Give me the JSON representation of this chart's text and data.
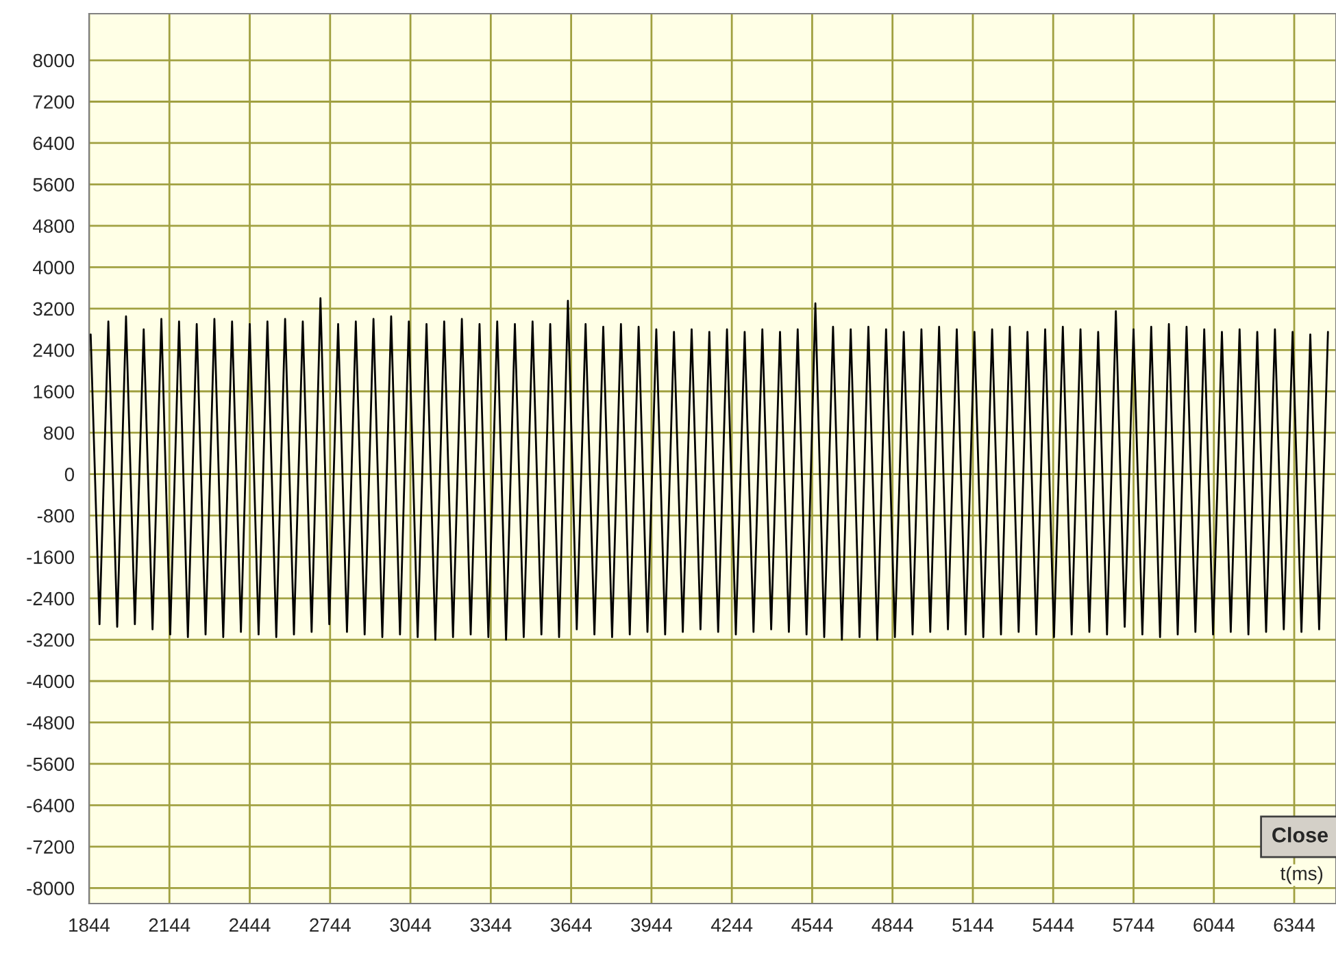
{
  "chart_data": {
    "type": "line",
    "xlabel": "t(ms)",
    "annotations": [
      "Close"
    ],
    "x": [
      1850,
      1883,
      1916,
      1949,
      1982,
      2015,
      2048,
      2081,
      2114,
      2147,
      2180,
      2213,
      2246,
      2279,
      2312,
      2345,
      2378,
      2411,
      2444,
      2477,
      2510,
      2543,
      2576,
      2609,
      2642,
      2675,
      2708,
      2741,
      2774,
      2807,
      2840,
      2873,
      2906,
      2939,
      2972,
      3005,
      3038,
      3071,
      3104,
      3137,
      3170,
      3203,
      3236,
      3269,
      3302,
      3335,
      3368,
      3401,
      3434,
      3467,
      3500,
      3533,
      3566,
      3599,
      3632,
      3665,
      3698,
      3731,
      3764,
      3797,
      3830,
      3863,
      3896,
      3929,
      3962,
      3995,
      4028,
      4061,
      4094,
      4127,
      4160,
      4193,
      4226,
      4259,
      4292,
      4325,
      4358,
      4391,
      4424,
      4457,
      4490,
      4523,
      4556,
      4589,
      4622,
      4655,
      4688,
      4721,
      4754,
      4787,
      4820,
      4853,
      4886,
      4919,
      4952,
      4985,
      5018,
      5051,
      5084,
      5117,
      5150,
      5183,
      5216,
      5249,
      5282,
      5315,
      5348,
      5381,
      5414,
      5447,
      5480,
      5513,
      5546,
      5579,
      5612,
      5645,
      5678,
      5711,
      5744,
      5777,
      5810,
      5843,
      5876,
      5909,
      5942,
      5975,
      6008,
      6041,
      6074,
      6107,
      6140,
      6173,
      6206,
      6239,
      6272,
      6305,
      6338,
      6371,
      6404,
      6437,
      6470
    ],
    "series": [
      {
        "color": "#000000",
        "values": [
          2700,
          -2900,
          2950,
          -2950,
          3050,
          -2900,
          2800,
          -3000,
          3000,
          -3100,
          2950,
          -3150,
          2900,
          -3100,
          3000,
          -3150,
          2950,
          -3050,
          2900,
          -3100,
          2950,
          -3150,
          3000,
          -3100,
          2950,
          -3050,
          3400,
          -2900,
          2900,
          -3050,
          2950,
          -3100,
          3000,
          -3150,
          3050,
          -3100,
          2950,
          -3150,
          2900,
          -3200,
          2950,
          -3150,
          3000,
          -3100,
          2900,
          -3150,
          2950,
          -3200,
          2900,
          -3150,
          2950,
          -3100,
          2900,
          -3150,
          3350,
          -3000,
          2900,
          -3100,
          2850,
          -3150,
          2900,
          -3100,
          2850,
          -3050,
          2800,
          -3100,
          2750,
          -3050,
          2800,
          -3000,
          2750,
          -3050,
          2800,
          -3100,
          2750,
          -3050,
          2800,
          -3000,
          2750,
          -3050,
          2800,
          -3100,
          3300,
          -3150,
          2850,
          -3200,
          2800,
          -3150,
          2850,
          -3200,
          2800,
          -3150,
          2750,
          -3100,
          2800,
          -3050,
          2850,
          -3000,
          2800,
          -3100,
          2750,
          -3150,
          2800,
          -3100,
          2850,
          -3050,
          2750,
          -3100,
          2800,
          -3150,
          2850,
          -3100,
          2800,
          -3050,
          2750,
          -3100,
          3150,
          -2950,
          2800,
          -3100,
          2850,
          -3150,
          2900,
          -3100,
          2850,
          -3050,
          2800,
          -3100,
          2750,
          -3050,
          2800,
          -3100,
          2750,
          -3050,
          2800,
          -3000,
          2750,
          -3050,
          2700,
          -3000,
          2750
        ]
      }
    ],
    "xlim": [
      1844,
      6500
    ],
    "ylim": [
      -8300,
      8900
    ],
    "xticks": [
      1844,
      2144,
      2444,
      2744,
      3044,
      3344,
      3644,
      3944,
      4244,
      4544,
      4844,
      5144,
      5444,
      5744,
      6044,
      6344
    ],
    "yticks": [
      -8000,
      -7200,
      -6400,
      -5600,
      -4800,
      -4000,
      -3200,
      -2400,
      -1600,
      -800,
      0,
      800,
      1600,
      2400,
      3200,
      4000,
      4800,
      5600,
      6400,
      7200,
      8000
    ],
    "grid": true,
    "line_style": "solid",
    "marker": "none"
  }
}
